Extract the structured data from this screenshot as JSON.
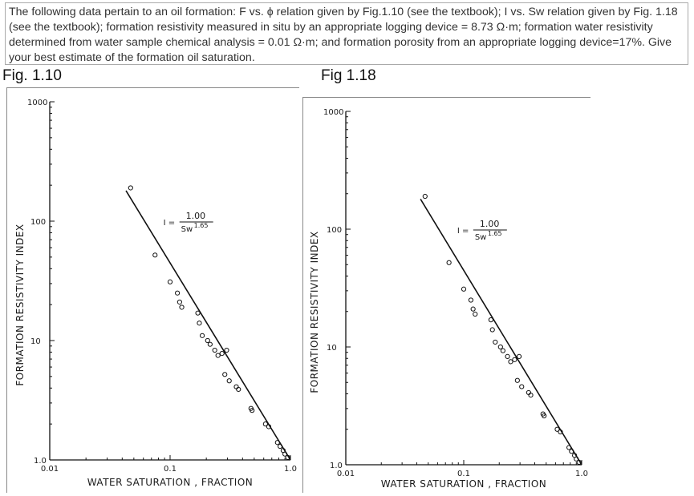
{
  "question": {
    "text": "The following data pertain to an oil formation: F vs. ϕ relation given by Fig.1.10 (see the textbook); I vs. Sw relation given by Fig. 1.18 (see the textbook); formation resistivity measured in situ by an appropriate logging device = 8.73 Ω·m; formation water resistivity determined from water sample chemical analysis = 0.01 Ω·m; and formation porosity from an appropriate logging device=17%. Give your best estimate of the formation oil saturation."
  },
  "figures": [
    {
      "title": "Fig. 1.10",
      "chart_data": {
        "type": "scatter",
        "ylabel": "FORMATION RESISTIVITY INDEX",
        "xlabel": "WATER SATURATION , FRACTION",
        "x_scale": "log",
        "y_scale": "log",
        "xlim": [
          0.01,
          1.0
        ],
        "ylim": [
          1.0,
          1000
        ],
        "x_ticks": [
          "0.01",
          "0.1",
          "1.0"
        ],
        "y_ticks": [
          "1.0",
          "10",
          "100",
          "1000"
        ],
        "equation": {
          "lhs": "I",
          "eq": "=",
          "numerator": "1.00",
          "base": "Sw",
          "exponent": "1.65"
        },
        "fit_line": {
          "x": [
            0.043,
            1.0
          ],
          "y": [
            180,
            1.0
          ]
        },
        "points": [
          {
            "x": 0.047,
            "y": 190
          },
          {
            "x": 0.075,
            "y": 52
          },
          {
            "x": 0.1,
            "y": 31
          },
          {
            "x": 0.115,
            "y": 25
          },
          {
            "x": 0.12,
            "y": 21
          },
          {
            "x": 0.125,
            "y": 19
          },
          {
            "x": 0.17,
            "y": 17
          },
          {
            "x": 0.175,
            "y": 14
          },
          {
            "x": 0.185,
            "y": 11
          },
          {
            "x": 0.205,
            "y": 10
          },
          {
            "x": 0.215,
            "y": 9.3
          },
          {
            "x": 0.235,
            "y": 8.3
          },
          {
            "x": 0.25,
            "y": 7.5
          },
          {
            "x": 0.27,
            "y": 7.8
          },
          {
            "x": 0.295,
            "y": 8.3
          },
          {
            "x": 0.285,
            "y": 5.2
          },
          {
            "x": 0.31,
            "y": 4.6
          },
          {
            "x": 0.355,
            "y": 4.1
          },
          {
            "x": 0.37,
            "y": 3.9
          },
          {
            "x": 0.47,
            "y": 2.7
          },
          {
            "x": 0.48,
            "y": 2.6
          },
          {
            "x": 0.62,
            "y": 2.0
          },
          {
            "x": 0.66,
            "y": 1.9
          },
          {
            "x": 0.78,
            "y": 1.4
          },
          {
            "x": 0.82,
            "y": 1.3
          },
          {
            "x": 0.87,
            "y": 1.2
          },
          {
            "x": 0.9,
            "y": 1.12
          },
          {
            "x": 0.95,
            "y": 1.05
          }
        ]
      }
    },
    {
      "title": "Fig 1.18",
      "chart_data": {
        "type": "scatter",
        "ylabel": "FORMATION RESISTIVITY INDEX",
        "xlabel": "WATER SATURATION , FRACTION",
        "x_scale": "log",
        "y_scale": "log",
        "xlim": [
          0.01,
          1.0
        ],
        "ylim": [
          1.0,
          1000
        ],
        "x_ticks": [
          "0.01",
          "0.1",
          "1.0"
        ],
        "y_ticks": [
          "1.0",
          "10",
          "100",
          "1000"
        ],
        "equation": {
          "lhs": "I",
          "eq": "=",
          "numerator": "1.00",
          "base": "Sw",
          "exponent": "1.65"
        },
        "fit_line": {
          "x": [
            0.043,
            1.0
          ],
          "y": [
            180,
            1.0
          ]
        },
        "points": [
          {
            "x": 0.047,
            "y": 190
          },
          {
            "x": 0.075,
            "y": 52
          },
          {
            "x": 0.1,
            "y": 31
          },
          {
            "x": 0.115,
            "y": 25
          },
          {
            "x": 0.12,
            "y": 21
          },
          {
            "x": 0.125,
            "y": 19
          },
          {
            "x": 0.17,
            "y": 17
          },
          {
            "x": 0.175,
            "y": 14
          },
          {
            "x": 0.185,
            "y": 11
          },
          {
            "x": 0.205,
            "y": 10
          },
          {
            "x": 0.215,
            "y": 9.3
          },
          {
            "x": 0.235,
            "y": 8.3
          },
          {
            "x": 0.25,
            "y": 7.5
          },
          {
            "x": 0.27,
            "y": 7.8
          },
          {
            "x": 0.295,
            "y": 8.3
          },
          {
            "x": 0.285,
            "y": 5.2
          },
          {
            "x": 0.31,
            "y": 4.6
          },
          {
            "x": 0.355,
            "y": 4.1
          },
          {
            "x": 0.37,
            "y": 3.9
          },
          {
            "x": 0.47,
            "y": 2.7
          },
          {
            "x": 0.48,
            "y": 2.6
          },
          {
            "x": 0.62,
            "y": 2.0
          },
          {
            "x": 0.66,
            "y": 1.9
          },
          {
            "x": 0.78,
            "y": 1.4
          },
          {
            "x": 0.82,
            "y": 1.3
          },
          {
            "x": 0.87,
            "y": 1.2
          },
          {
            "x": 0.9,
            "y": 1.12
          },
          {
            "x": 0.95,
            "y": 1.05
          }
        ]
      }
    }
  ]
}
